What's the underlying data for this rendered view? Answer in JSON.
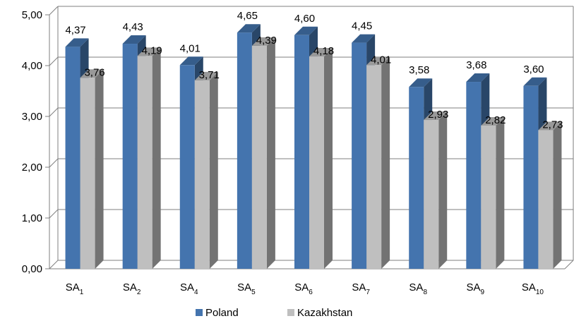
{
  "chart_data": {
    "type": "bar",
    "categories": [
      {
        "base": "SA",
        "sub": "1"
      },
      {
        "base": "SA",
        "sub": "2"
      },
      {
        "base": "SA",
        "sub": "4"
      },
      {
        "base": "SA",
        "sub": "5"
      },
      {
        "base": "SA",
        "sub": "6"
      },
      {
        "base": "SA",
        "sub": "7"
      },
      {
        "base": "SA",
        "sub": "8"
      },
      {
        "base": "SA",
        "sub": "9"
      },
      {
        "base": "SA",
        "sub": "10"
      }
    ],
    "series": [
      {
        "name": "Poland",
        "color": "#4474AE",
        "values": [
          4.37,
          4.43,
          4.01,
          4.65,
          4.6,
          4.45,
          3.58,
          3.68,
          3.6
        ],
        "labels": [
          "4,37",
          "4,43",
          "4,01",
          "4,65",
          "4,60",
          "4,45",
          "3,58",
          "3,68",
          "3,60"
        ]
      },
      {
        "name": "Kazakhstan",
        "color": "#BFBFBF",
        "values": [
          3.76,
          4.19,
          3.71,
          4.39,
          4.18,
          4.01,
          2.93,
          2.82,
          2.73
        ],
        "labels": [
          "3,76",
          "4,19",
          "3,71",
          "4,39",
          "4,18",
          "4,01",
          "2,93",
          "2,82",
          "2,73"
        ]
      }
    ],
    "y_ticks": [
      {
        "value": 0,
        "label": "0,00"
      },
      {
        "value": 1,
        "label": "1,00"
      },
      {
        "value": 2,
        "label": "2,00"
      },
      {
        "value": 3,
        "label": "3,00"
      },
      {
        "value": 4,
        "label": "4,00"
      },
      {
        "value": 5,
        "label": "5,00"
      }
    ],
    "ylim": [
      0,
      5
    ],
    "grid": true,
    "legend_position": "bottom"
  }
}
